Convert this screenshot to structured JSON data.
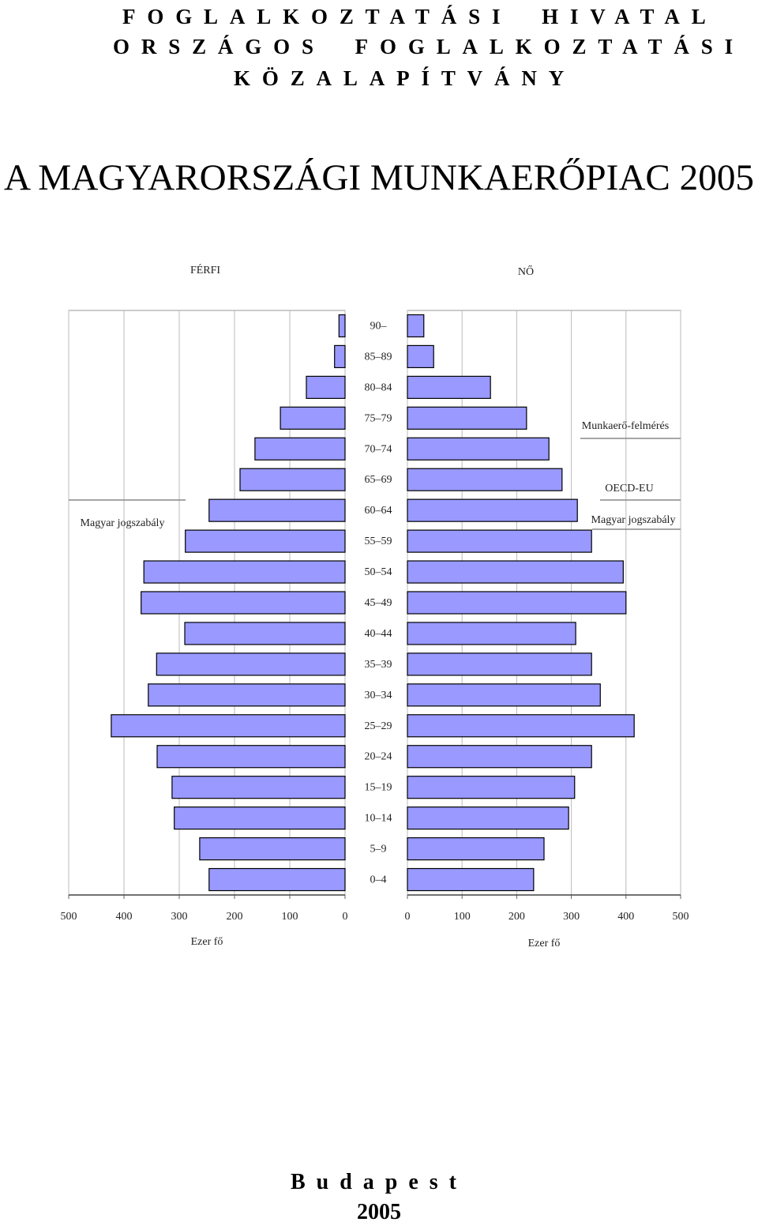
{
  "header": {
    "lines": [
      "FOGLALKOZTATÁSI HIVATAL",
      "ORSZÁGOS FOGLALKOZTATÁSI",
      "KÖZALAPÍTVÁNY"
    ]
  },
  "title": "A MAGYARORSZÁGI MUNKAERŐPIAC 2005",
  "chart_data": {
    "type": "bar",
    "categories": [
      "90–",
      "85–89",
      "80–84",
      "75–79",
      "70–74",
      "65–69",
      "60–64",
      "55–59",
      "50–54",
      "45–49",
      "40–44",
      "35–39",
      "30–34",
      "25–29",
      "20–24",
      "15–19",
      "10–14",
      "5–9",
      "0–4"
    ],
    "series": [
      {
        "name": "FÉRFI",
        "color": "#9999ff",
        "values": [
          11,
          19,
          70,
          117,
          163,
          190,
          246,
          289,
          364,
          369,
          290,
          341,
          356,
          423,
          340,
          313,
          309,
          263,
          246
        ]
      },
      {
        "name": "NŐ",
        "color": "#9999ff",
        "values": [
          30,
          48,
          152,
          218,
          259,
          283,
          311,
          337,
          395,
          400,
          308,
          337,
          353,
          415,
          337,
          306,
          295,
          250,
          231
        ]
      }
    ],
    "xlim": [
      0,
      500
    ],
    "xticks": [
      0,
      100,
      200,
      300,
      400,
      500
    ],
    "xlabel": "Ezer fő",
    "grid": true,
    "annotations": [
      "Magyar jogszabály",
      "Munkaerő-felmérés",
      "OECD-EU",
      "Magyar jogszabály"
    ]
  },
  "footer": {
    "place": "Budapest",
    "year": "2005"
  }
}
